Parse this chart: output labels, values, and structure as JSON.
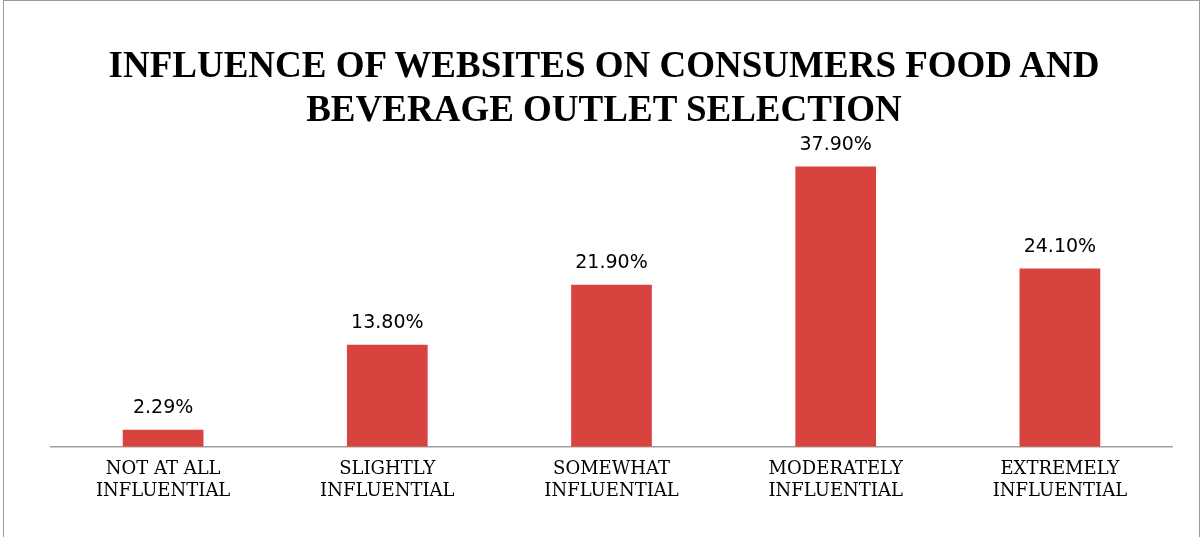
{
  "chart_data": {
    "type": "bar",
    "title": "INFLUENCE OF WEBSITES ON CONSUMERS FOOD AND BEVERAGE OUTLET SELECTION",
    "categories": [
      "NOT AT ALL INFLUENTIAL",
      "SLIGHTLY INFLUENTIAL",
      "SOMEWHAT INFLUENTIAL",
      "MODERATELY INFLUENTIAL",
      "EXTREMELY INFLUENTIAL"
    ],
    "values": [
      2.29,
      13.8,
      21.9,
      37.9,
      24.1
    ],
    "value_labels": [
      "2.29%",
      "13.80%",
      "21.90%",
      "37.90%",
      "24.10%"
    ],
    "color": "#d9433f",
    "grid": false,
    "legend": false,
    "tick_labels": "x"
  }
}
